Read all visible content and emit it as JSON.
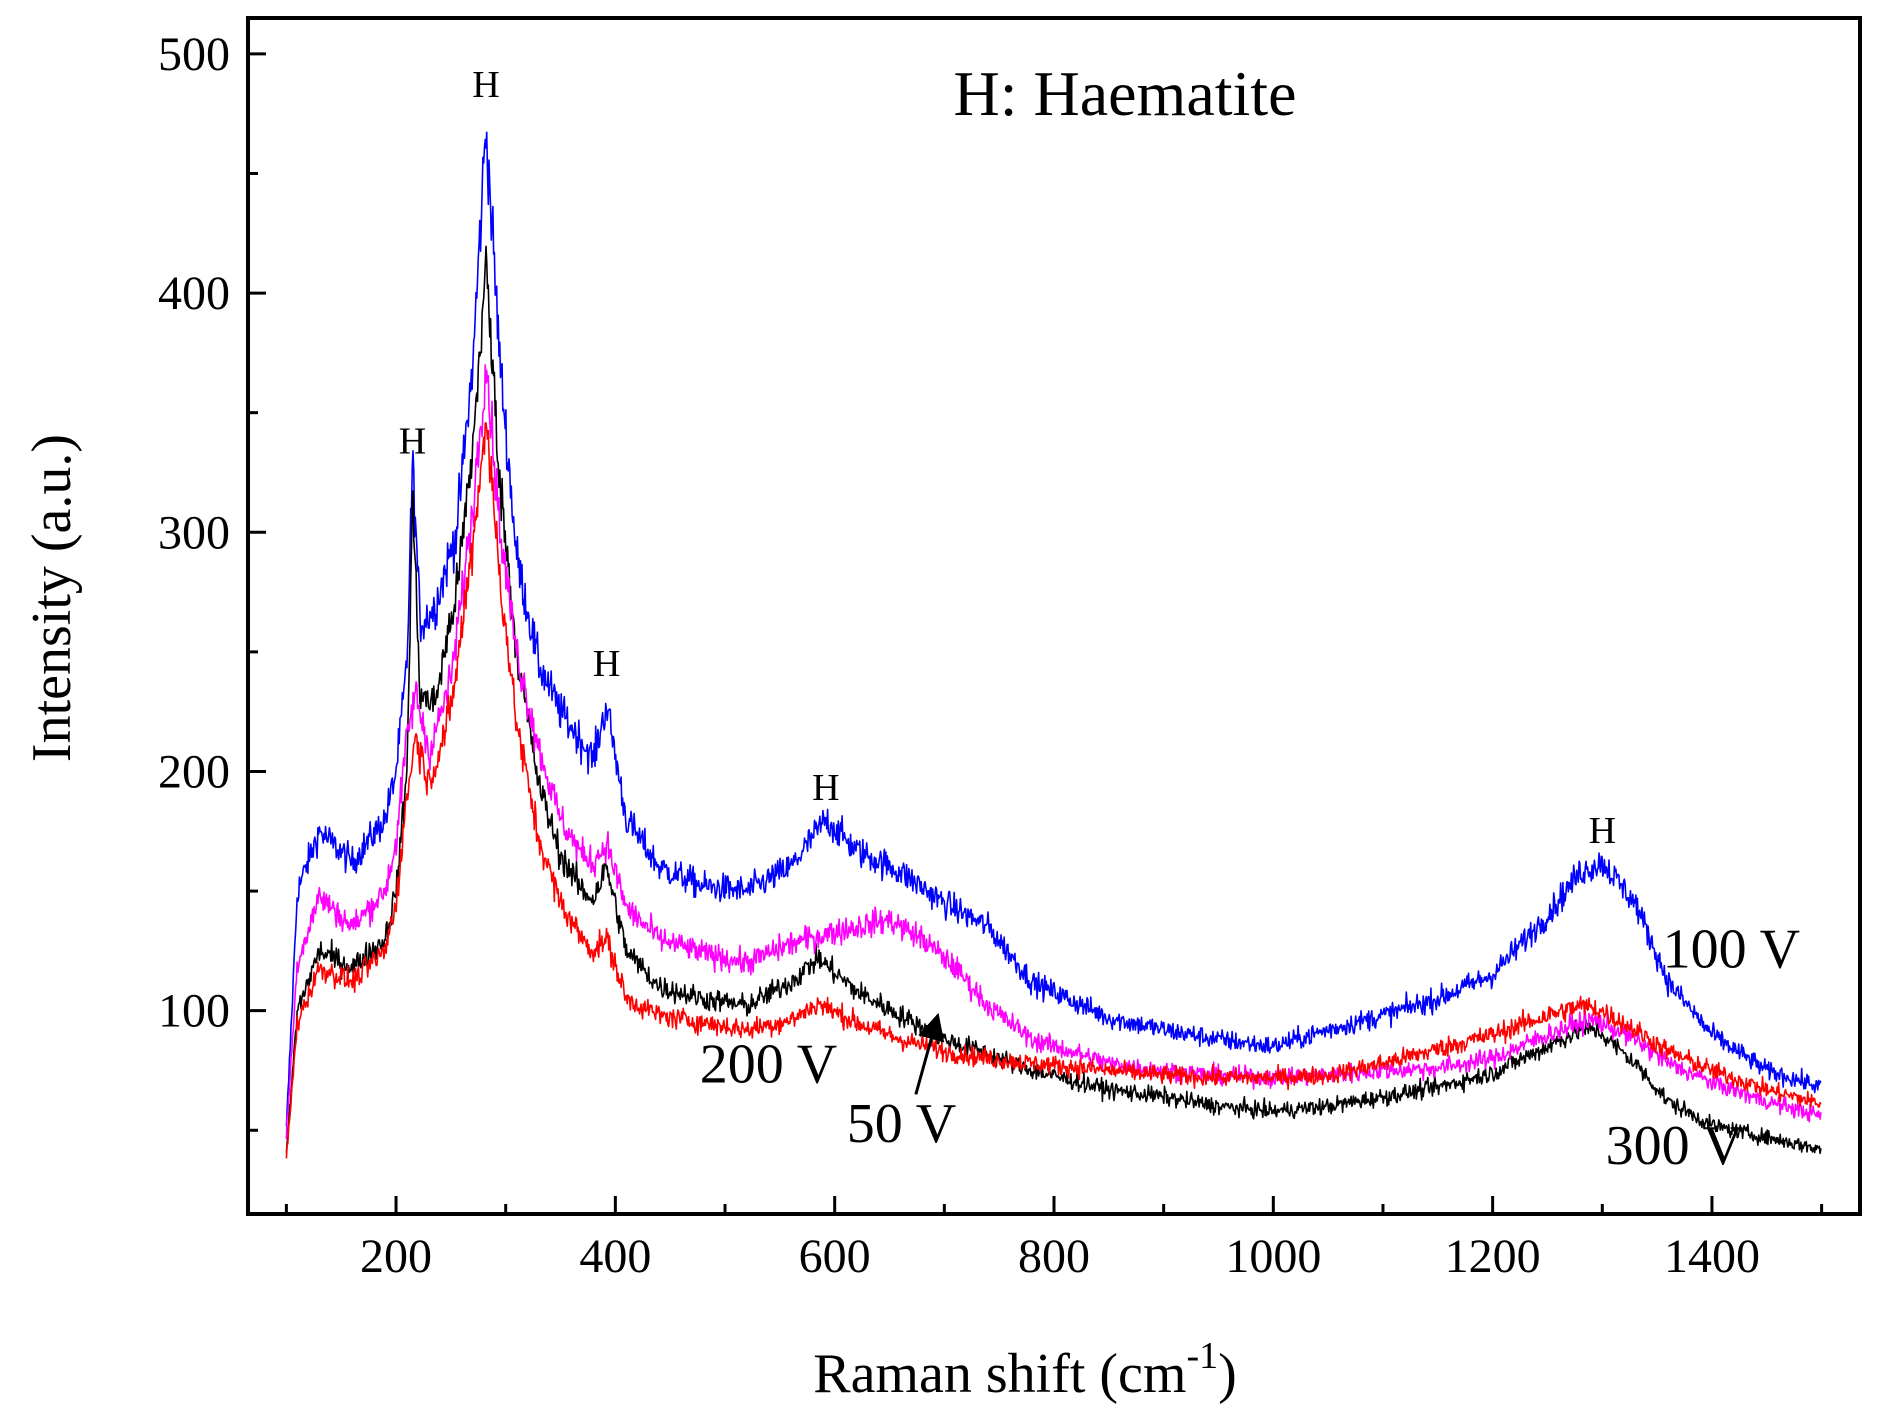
{
  "chart_data": {
    "type": "line",
    "title": "H: Haematite",
    "xlabel": "Raman shift (cm",
    "xlabel_exponent": "-1",
    "xlabel_suffix": ")",
    "ylabel": "Intensity (a.u.)",
    "xlim": [
      65,
      1535
    ],
    "ylim": [
      15,
      515
    ],
    "xticks": [
      200,
      400,
      600,
      800,
      1000,
      1200,
      1400
    ],
    "yticks": [
      100,
      200,
      300,
      400,
      500
    ],
    "xtick_labels": [
      "200",
      "400",
      "600",
      "800",
      "1000",
      "1200",
      "1400"
    ],
    "ytick_labels": [
      "100",
      "200",
      "300",
      "400",
      "500"
    ],
    "grid": false,
    "peak_marker": "H",
    "peak_annotations": [
      {
        "text": "H",
        "x": 215,
        "y": 333
      },
      {
        "text": "H",
        "x": 282,
        "y": 482
      },
      {
        "text": "H",
        "x": 392,
        "y": 240
      },
      {
        "text": "H",
        "x": 592,
        "y": 188
      },
      {
        "text": "H",
        "x": 1300,
        "y": 170
      }
    ],
    "series": [
      {
        "name": "100 V",
        "color": "#0000ff",
        "x": [
          100,
          110,
          130,
          160,
          190,
          200,
          210,
          215,
          222,
          235,
          255,
          270,
          282,
          295,
          310,
          330,
          350,
          370,
          380,
          392,
          410,
          440,
          480,
          520,
          560,
          592,
          620,
          660,
          700,
          740,
          780,
          850,
          900,
          950,
          1000,
          1050,
          1100,
          1150,
          1200,
          1250,
          1280,
          1300,
          1330,
          1360,
          1400,
          1450,
          1500
        ],
        "values": [
          50,
          150,
          175,
          162,
          180,
          200,
          245,
          330,
          262,
          268,
          300,
          370,
          470,
          370,
          290,
          245,
          225,
          212,
          205,
          228,
          180,
          160,
          152,
          150,
          160,
          180,
          167,
          158,
          145,
          135,
          112,
          97,
          92,
          88,
          85,
          92,
          98,
          105,
          115,
          140,
          158,
          162,
          145,
          112,
          90,
          75,
          68
        ]
      },
      {
        "name": "300 V",
        "color": "#000000",
        "x": [
          100,
          110,
          130,
          160,
          190,
          200,
          210,
          215,
          222,
          235,
          255,
          270,
          282,
          295,
          310,
          330,
          350,
          370,
          380,
          392,
          410,
          440,
          480,
          520,
          560,
          585,
          620,
          660,
          700,
          740,
          780,
          850,
          900,
          950,
          1000,
          1050,
          1100,
          1150,
          1200,
          1250,
          1280,
          1295,
          1330,
          1360,
          1400,
          1450,
          1500
        ],
        "values": [
          40,
          100,
          125,
          118,
          130,
          150,
          200,
          315,
          232,
          228,
          275,
          335,
          412,
          320,
          250,
          195,
          165,
          150,
          147,
          160,
          125,
          110,
          105,
          102,
          112,
          122,
          108,
          98,
          88,
          82,
          75,
          67,
          64,
          60,
          58,
          60,
          64,
          68,
          74,
          85,
          92,
          92,
          78,
          62,
          52,
          47,
          42
        ]
      },
      {
        "name": "50 V",
        "color": "#ff00ff",
        "x": [
          100,
          110,
          130,
          160,
          190,
          200,
          210,
          218,
          230,
          250,
          270,
          282,
          295,
          310,
          330,
          350,
          370,
          380,
          392,
          410,
          440,
          480,
          520,
          560,
          600,
          650,
          680,
          710,
          740,
          780,
          850,
          900,
          950,
          1000,
          1050,
          1100,
          1150,
          1200,
          1250,
          1280,
          1295,
          1330,
          1360,
          1400,
          1450,
          1500
        ],
        "values": [
          48,
          120,
          148,
          135,
          150,
          170,
          215,
          233,
          208,
          238,
          310,
          372,
          300,
          250,
          210,
          180,
          165,
          162,
          170,
          143,
          130,
          124,
          120,
          128,
          133,
          138,
          130,
          118,
          102,
          88,
          78,
          75,
          73,
          72,
          73,
          75,
          76,
          80,
          90,
          95,
          96,
          88,
          78,
          70,
          62,
          56
        ]
      },
      {
        "name": "200 V",
        "color": "#ff0000",
        "x": [
          100,
          110,
          130,
          160,
          190,
          200,
          210,
          218,
          230,
          250,
          270,
          282,
          295,
          310,
          330,
          350,
          370,
          380,
          392,
          410,
          440,
          480,
          520,
          560,
          585,
          620,
          660,
          700,
          740,
          780,
          850,
          900,
          950,
          1000,
          1050,
          1100,
          1150,
          1200,
          1250,
          1280,
          1295,
          1330,
          1360,
          1400,
          1450,
          1500
        ],
        "values": [
          38,
          95,
          118,
          112,
          125,
          145,
          190,
          215,
          195,
          225,
          295,
          348,
          280,
          220,
          172,
          145,
          130,
          125,
          130,
          105,
          98,
          95,
          92,
          96,
          103,
          95,
          88,
          83,
          80,
          78,
          75,
          73,
          72,
          72,
          73,
          78,
          84,
          90,
          98,
          102,
          101,
          92,
          83,
          75,
          67,
          61
        ]
      }
    ],
    "series_labels": [
      {
        "text": "100 V",
        "x": 1355,
        "y": 118
      },
      {
        "text": "200 V",
        "x": 477,
        "y": 70
      },
      {
        "text": "50 V",
        "x": 611,
        "y": 45
      },
      {
        "text": "300 V",
        "x": 1303,
        "y": 36
      }
    ],
    "arrow": {
      "from": [
        674,
        65
      ],
      "to": [
        694,
        98
      ]
    }
  }
}
